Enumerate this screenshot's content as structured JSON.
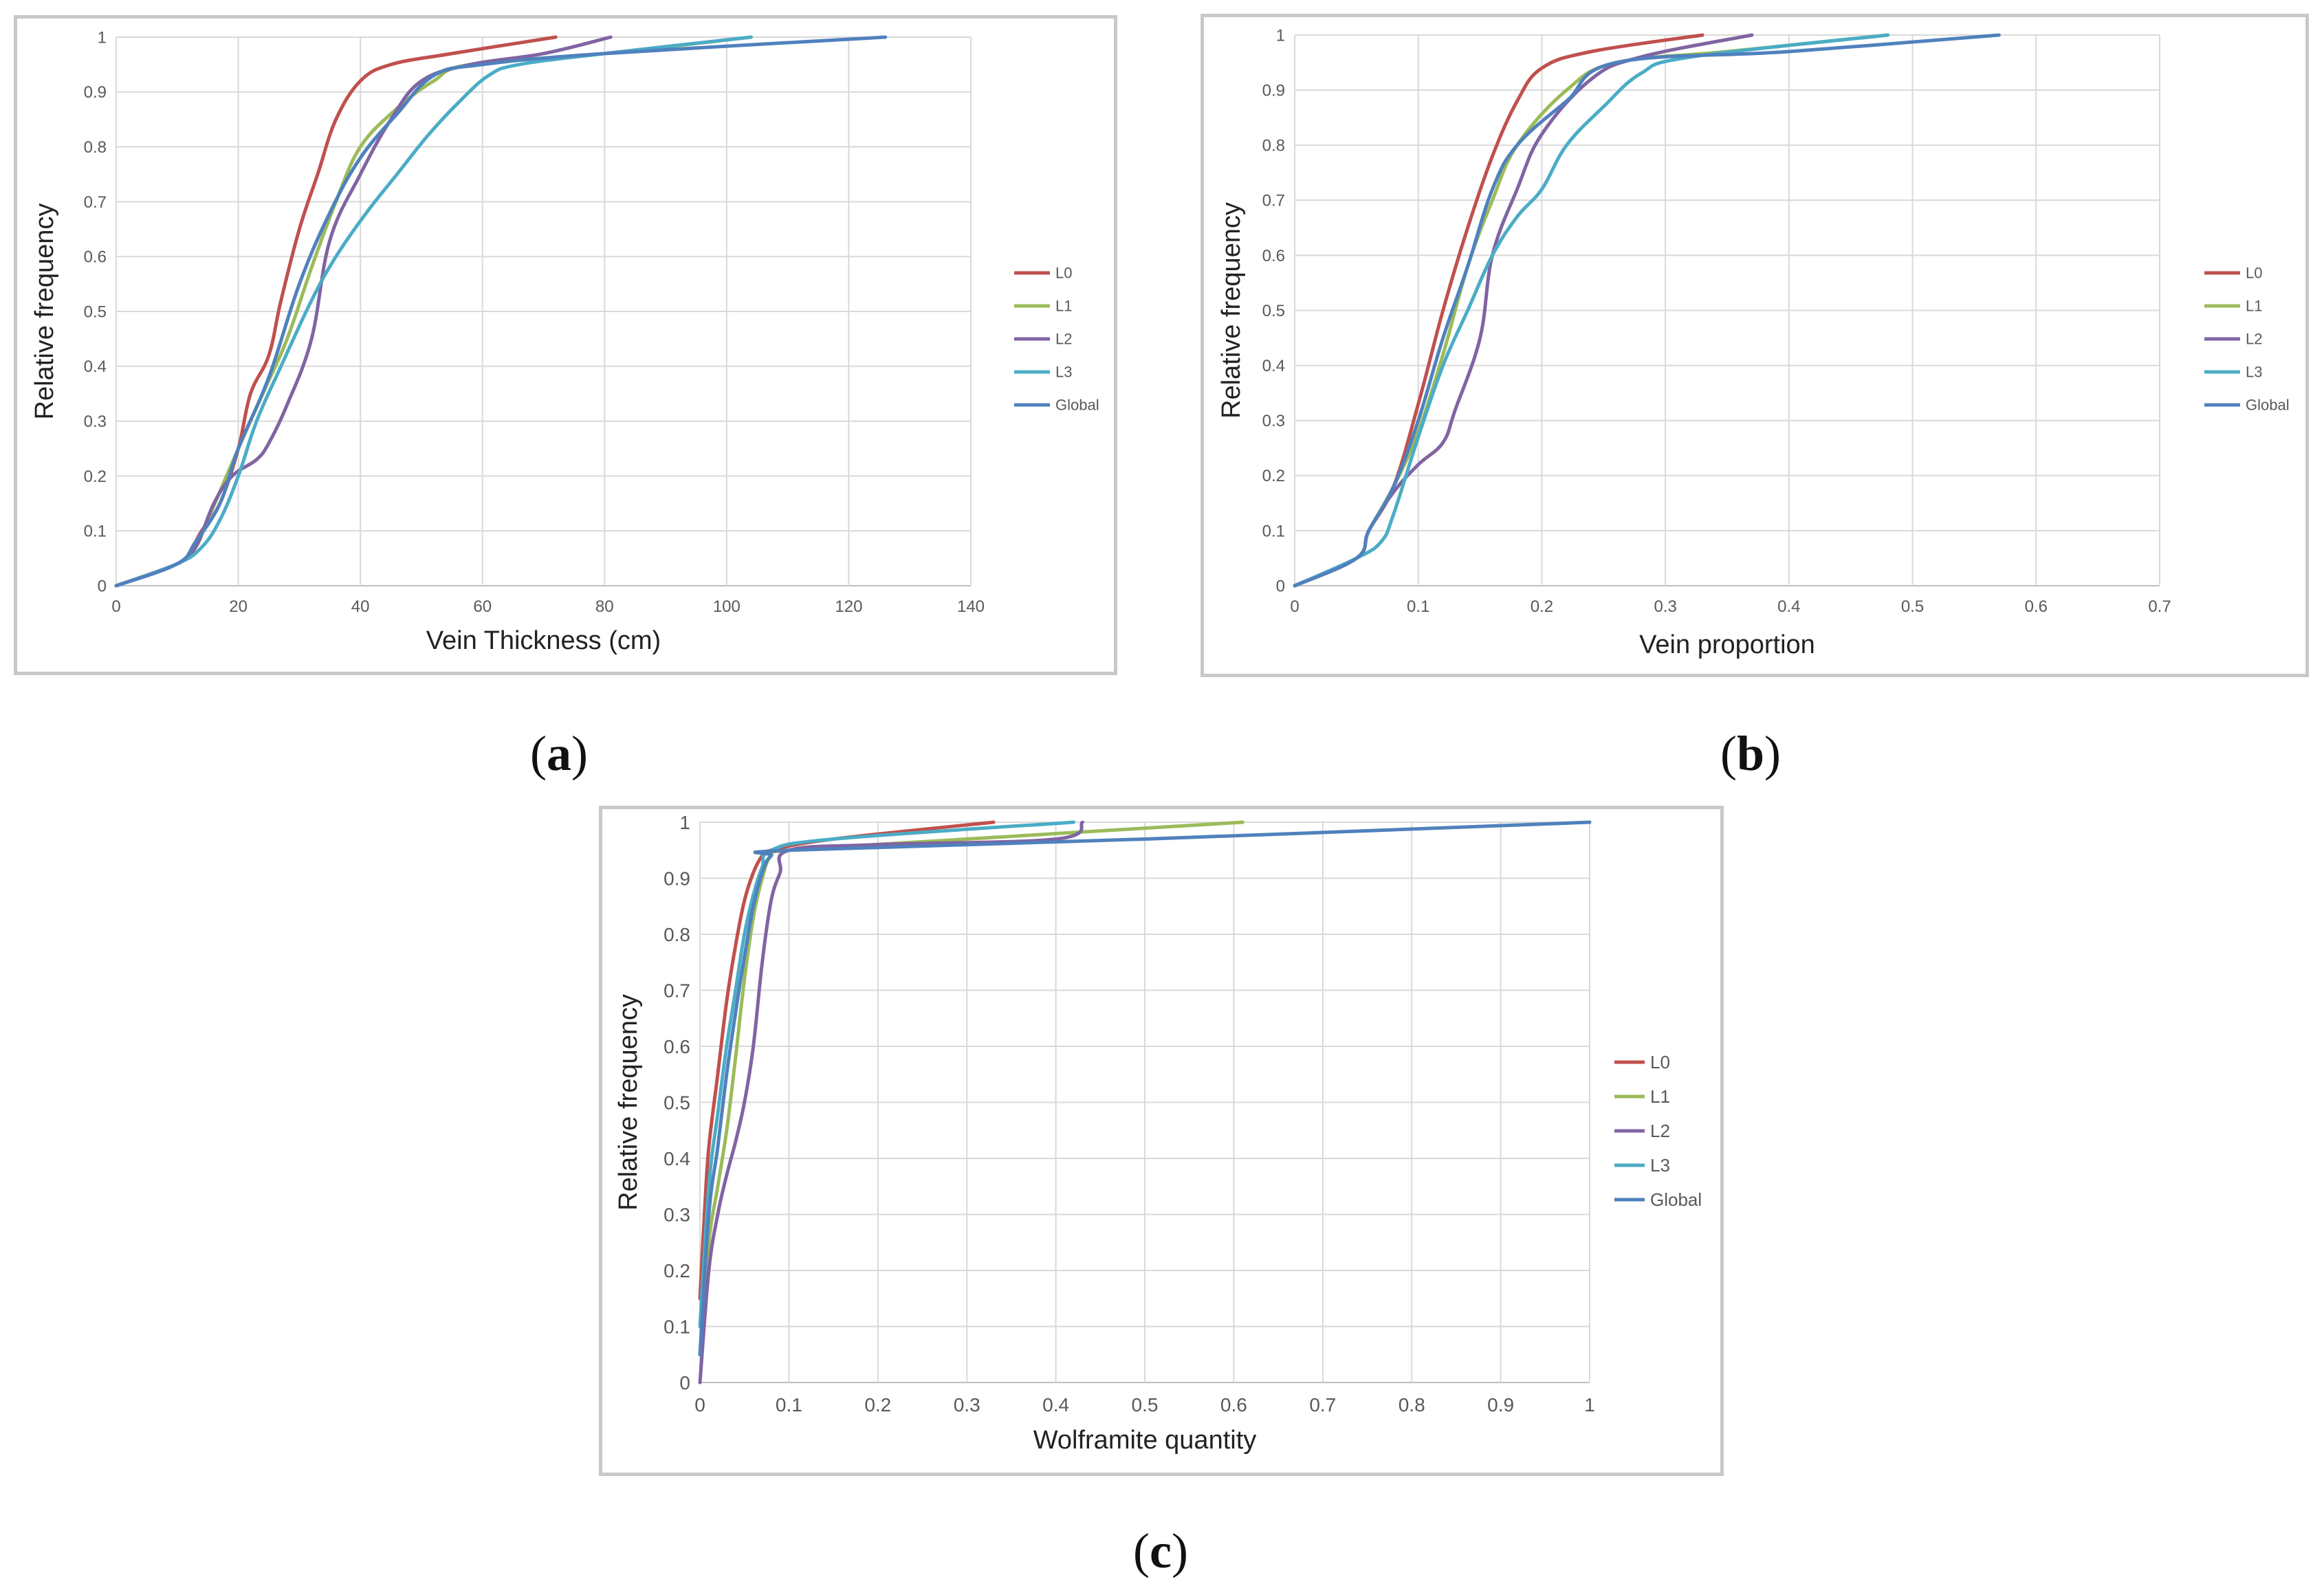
{
  "charts": [
    {
      "id": "a",
      "caption_label": "a"
    },
    {
      "id": "b",
      "caption_label": "b"
    },
    {
      "id": "c",
      "caption_label": "c"
    }
  ],
  "colors": {
    "L0": "#c0504d",
    "L1": "#9bbb59",
    "L2": "#8064a2",
    "L3": "#4bacc6",
    "Global": "#4f81bd",
    "grid": "#d9d9d9",
    "axis": "#bfbfbf"
  },
  "chart_data": [
    {
      "type": "line",
      "title": "",
      "xlabel": "Vein Thickness (cm)",
      "ylabel": "Relative frequency",
      "xlim": [
        0,
        140
      ],
      "ylim": [
        0,
        1
      ],
      "xticks": [
        "0",
        "20",
        "40",
        "60",
        "80",
        "100",
        "120",
        "140"
      ],
      "yticks": [
        "0",
        "0.1",
        "0.2",
        "0.3",
        "0.4",
        "0.5",
        "0.6",
        "0.7",
        "0.8",
        "0.9",
        "1"
      ],
      "legend_position": "right",
      "series": [
        {
          "name": "L0",
          "points": [
            [
              0,
              0
            ],
            [
              10,
              0.04
            ],
            [
              12,
              0.06
            ],
            [
              14,
              0.1
            ],
            [
              17,
              0.15
            ],
            [
              20,
              0.25
            ],
            [
              22,
              0.35
            ],
            [
              25,
              0.42
            ],
            [
              27,
              0.52
            ],
            [
              30,
              0.65
            ],
            [
              33,
              0.75
            ],
            [
              36,
              0.85
            ],
            [
              40,
              0.92
            ],
            [
              45,
              0.95
            ],
            [
              55,
              0.97
            ],
            [
              72,
              1
            ]
          ]
        },
        {
          "name": "L1",
          "points": [
            [
              0,
              0
            ],
            [
              10,
              0.04
            ],
            [
              13,
              0.07
            ],
            [
              15,
              0.12
            ],
            [
              20,
              0.25
            ],
            [
              24,
              0.35
            ],
            [
              28,
              0.45
            ],
            [
              32,
              0.58
            ],
            [
              36,
              0.7
            ],
            [
              40,
              0.8
            ],
            [
              46,
              0.87
            ],
            [
              52,
              0.92
            ],
            [
              58,
              0.95
            ],
            [
              80,
              0.97
            ],
            [
              104,
              1
            ]
          ]
        },
        {
          "name": "L2",
          "points": [
            [
              0,
              0
            ],
            [
              10,
              0.04
            ],
            [
              13,
              0.07
            ],
            [
              16,
              0.15
            ],
            [
              19,
              0.2
            ],
            [
              23,
              0.23
            ],
            [
              25,
              0.26
            ],
            [
              28,
              0.33
            ],
            [
              32,
              0.45
            ],
            [
              35,
              0.63
            ],
            [
              40,
              0.75
            ],
            [
              45,
              0.85
            ],
            [
              50,
              0.92
            ],
            [
              58,
              0.95
            ],
            [
              70,
              0.97
            ],
            [
              81,
              1
            ]
          ]
        },
        {
          "name": "L3",
          "points": [
            [
              0,
              0
            ],
            [
              10,
              0.04
            ],
            [
              14,
              0.07
            ],
            [
              17,
              0.12
            ],
            [
              20,
              0.2
            ],
            [
              23,
              0.3
            ],
            [
              27,
              0.4
            ],
            [
              32,
              0.52
            ],
            [
              36,
              0.6
            ],
            [
              41,
              0.68
            ],
            [
              46,
              0.75
            ],
            [
              51,
              0.82
            ],
            [
              56,
              0.88
            ],
            [
              61,
              0.93
            ],
            [
              66,
              0.95
            ],
            [
              80,
              0.97
            ],
            [
              104,
              1
            ]
          ]
        },
        {
          "name": "Global",
          "points": [
            [
              0,
              0
            ],
            [
              10,
              0.04
            ],
            [
              13,
              0.08
            ],
            [
              17,
              0.15
            ],
            [
              20,
              0.25
            ],
            [
              25,
              0.38
            ],
            [
              30,
              0.55
            ],
            [
              35,
              0.68
            ],
            [
              40,
              0.78
            ],
            [
              46,
              0.86
            ],
            [
              52,
              0.93
            ],
            [
              60,
              0.95
            ],
            [
              80,
              0.97
            ],
            [
              126,
              1
            ]
          ]
        }
      ]
    },
    {
      "type": "line",
      "title": "",
      "xlabel": "Vein proportion",
      "ylabel": "Relative frequency",
      "xlim": [
        0,
        0.7
      ],
      "ylim": [
        0,
        1
      ],
      "xticks": [
        "0",
        "0.1",
        "0.2",
        "0.3",
        "0.4",
        "0.5",
        "0.6",
        "0.7"
      ],
      "yticks": [
        "0",
        "0.1",
        "0.2",
        "0.3",
        "0.4",
        "0.5",
        "0.6",
        "0.7",
        "0.8",
        "0.9",
        "1"
      ],
      "legend_position": "right",
      "series": [
        {
          "name": "L0",
          "points": [
            [
              0,
              0
            ],
            [
              0.05,
              0.05
            ],
            [
              0.06,
              0.1
            ],
            [
              0.08,
              0.18
            ],
            [
              0.1,
              0.33
            ],
            [
              0.12,
              0.5
            ],
            [
              0.14,
              0.65
            ],
            [
              0.16,
              0.78
            ],
            [
              0.18,
              0.88
            ],
            [
              0.2,
              0.94
            ],
            [
              0.24,
              0.97
            ],
            [
              0.33,
              1
            ]
          ]
        },
        {
          "name": "L1",
          "points": [
            [
              0,
              0
            ],
            [
              0.05,
              0.05
            ],
            [
              0.06,
              0.1
            ],
            [
              0.08,
              0.18
            ],
            [
              0.1,
              0.28
            ],
            [
              0.12,
              0.42
            ],
            [
              0.14,
              0.58
            ],
            [
              0.16,
              0.7
            ],
            [
              0.18,
              0.8
            ],
            [
              0.22,
              0.9
            ],
            [
              0.26,
              0.95
            ],
            [
              0.35,
              0.97
            ],
            [
              0.48,
              1
            ]
          ]
        },
        {
          "name": "L2",
          "points": [
            [
              0,
              0
            ],
            [
              0.05,
              0.05
            ],
            [
              0.06,
              0.1
            ],
            [
              0.08,
              0.17
            ],
            [
              0.1,
              0.22
            ],
            [
              0.12,
              0.26
            ],
            [
              0.13,
              0.32
            ],
            [
              0.15,
              0.45
            ],
            [
              0.16,
              0.6
            ],
            [
              0.18,
              0.72
            ],
            [
              0.2,
              0.82
            ],
            [
              0.24,
              0.92
            ],
            [
              0.28,
              0.96
            ],
            [
              0.37,
              1
            ]
          ]
        },
        {
          "name": "L3",
          "points": [
            [
              0,
              0
            ],
            [
              0.05,
              0.05
            ],
            [
              0.07,
              0.08
            ],
            [
              0.08,
              0.13
            ],
            [
              0.1,
              0.27
            ],
            [
              0.12,
              0.4
            ],
            [
              0.14,
              0.5
            ],
            [
              0.16,
              0.6
            ],
            [
              0.18,
              0.67
            ],
            [
              0.2,
              0.72
            ],
            [
              0.22,
              0.8
            ],
            [
              0.25,
              0.87
            ],
            [
              0.28,
              0.93
            ],
            [
              0.32,
              0.96
            ],
            [
              0.48,
              1
            ]
          ]
        },
        {
          "name": "Global",
          "points": [
            [
              0,
              0
            ],
            [
              0.05,
              0.05
            ],
            [
              0.06,
              0.1
            ],
            [
              0.08,
              0.18
            ],
            [
              0.1,
              0.3
            ],
            [
              0.12,
              0.45
            ],
            [
              0.14,
              0.58
            ],
            [
              0.16,
              0.72
            ],
            [
              0.18,
              0.8
            ],
            [
              0.22,
              0.88
            ],
            [
              0.26,
              0.95
            ],
            [
              0.4,
              0.97
            ],
            [
              0.57,
              1
            ]
          ]
        }
      ]
    },
    {
      "type": "line",
      "title": "",
      "xlabel": "Wolframite quantity",
      "ylabel": "Relative frequency",
      "xlim": [
        0,
        1
      ],
      "ylim": [
        0,
        1
      ],
      "xticks": [
        "0",
        "0.1",
        "0.2",
        "0.3",
        "0.4",
        "0.5",
        "0.6",
        "0.7",
        "0.8",
        "0.9",
        "1"
      ],
      "yticks": [
        "0",
        "0.1",
        "0.2",
        "0.3",
        "0.4",
        "0.5",
        "0.6",
        "0.7",
        "0.8",
        "0.9",
        "1"
      ],
      "legend_position": "right",
      "series": [
        {
          "name": "L0",
          "points": [
            [
              0,
              0.15
            ],
            [
              0.005,
              0.3
            ],
            [
              0.01,
              0.42
            ],
            [
              0.02,
              0.55
            ],
            [
              0.03,
              0.68
            ],
            [
              0.04,
              0.78
            ],
            [
              0.05,
              0.86
            ],
            [
              0.06,
              0.91
            ],
            [
              0.07,
              0.94
            ],
            [
              0.08,
              0.95
            ],
            [
              0.15,
              0.97
            ],
            [
              0.33,
              1
            ]
          ]
        },
        {
          "name": "L1",
          "points": [
            [
              0,
              0.05
            ],
            [
              0.01,
              0.25
            ],
            [
              0.02,
              0.35
            ],
            [
              0.03,
              0.45
            ],
            [
              0.04,
              0.58
            ],
            [
              0.05,
              0.72
            ],
            [
              0.06,
              0.83
            ],
            [
              0.07,
              0.9
            ],
            [
              0.08,
              0.94
            ],
            [
              0.1,
              0.95
            ],
            [
              0.3,
              0.97
            ],
            [
              0.61,
              1
            ]
          ]
        },
        {
          "name": "L2",
          "points": [
            [
              0,
              0
            ],
            [
              0.01,
              0.2
            ],
            [
              0.02,
              0.3
            ],
            [
              0.03,
              0.37
            ],
            [
              0.04,
              0.43
            ],
            [
              0.05,
              0.5
            ],
            [
              0.06,
              0.6
            ],
            [
              0.07,
              0.75
            ],
            [
              0.08,
              0.86
            ],
            [
              0.09,
              0.91
            ],
            [
              0.1,
              0.95
            ],
            [
              0.2,
              0.96
            ],
            [
              0.4,
              0.97
            ],
            [
              0.43,
              1
            ]
          ]
        },
        {
          "name": "L3",
          "points": [
            [
              0,
              0.1
            ],
            [
              0.01,
              0.35
            ],
            [
              0.02,
              0.48
            ],
            [
              0.03,
              0.6
            ],
            [
              0.04,
              0.7
            ],
            [
              0.05,
              0.8
            ],
            [
              0.06,
              0.87
            ],
            [
              0.07,
              0.92
            ],
            [
              0.08,
              0.95
            ],
            [
              0.15,
              0.97
            ],
            [
              0.42,
              1
            ]
          ]
        },
        {
          "name": "Global",
          "points": [
            [
              0,
              0.05
            ],
            [
              0.01,
              0.3
            ],
            [
              0.02,
              0.42
            ],
            [
              0.03,
              0.55
            ],
            [
              0.04,
              0.66
            ],
            [
              0.05,
              0.76
            ],
            [
              0.06,
              0.85
            ],
            [
              0.07,
              0.91
            ],
            [
              0.08,
              0.94
            ],
            [
              0.1,
              0.95
            ],
            [
              0.5,
              0.97
            ],
            [
              1.0,
              1
            ]
          ]
        }
      ]
    }
  ]
}
